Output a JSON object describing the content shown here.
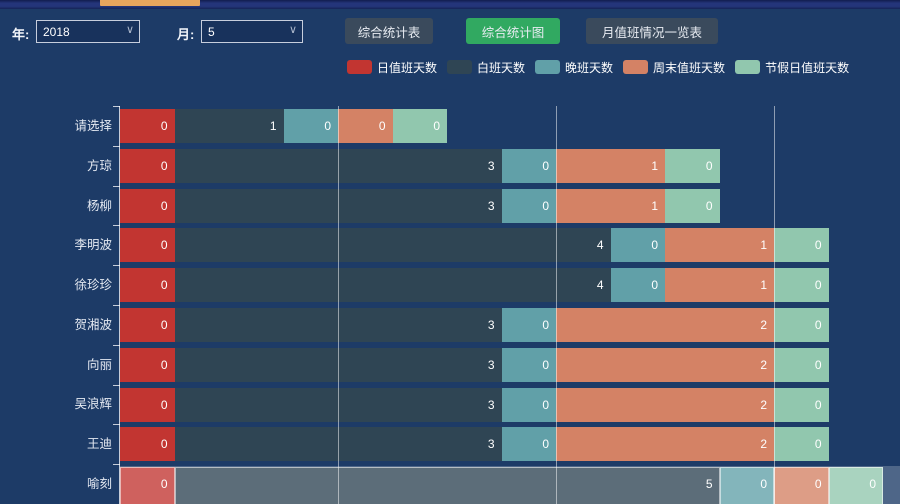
{
  "toolbar": {
    "year_label": "年:",
    "year_value": "2018",
    "month_label": "月:",
    "month_value": "5",
    "buttons": {
      "stats_table": "综合统计表",
      "stats_chart": "综合统计图",
      "monthly_duty_list": "月值班情况一览表"
    }
  },
  "colors": {
    "background": "#1d3b67",
    "active_tab_indicator": "#e8a55d",
    "button_slate": "#3a4a5c",
    "button_active_green": "#31a961"
  },
  "chart_data": {
    "type": "bar",
    "orientation": "horizontal",
    "stacked": true,
    "legend_position": "top",
    "categories": [
      "请选择",
      "方琼",
      "杨柳",
      "李明波",
      "徐珍珍",
      "贺湘波",
      "向丽",
      "吴浪辉",
      "王迪",
      "喻刻"
    ],
    "series": [
      {
        "name": "日值班天数",
        "color": "#c23531",
        "values": [
          0,
          0,
          0,
          0,
          0,
          0,
          0,
          0,
          0,
          0
        ]
      },
      {
        "name": "白班天数",
        "color": "#2f4554",
        "values": [
          1,
          3,
          3,
          4,
          4,
          3,
          3,
          3,
          3,
          5
        ]
      },
      {
        "name": "晚班天数",
        "color": "#61a0a8",
        "values": [
          0,
          0,
          0,
          0,
          0,
          0,
          0,
          0,
          0,
          0
        ]
      },
      {
        "name": "周末值班天数",
        "color": "#d48265",
        "values": [
          0,
          1,
          1,
          1,
          1,
          2,
          2,
          2,
          2,
          0
        ]
      },
      {
        "name": "节假日值班天数",
        "color": "#91c7ae",
        "values": [
          0,
          0,
          0,
          0,
          0,
          0,
          0,
          0,
          0,
          0
        ]
      }
    ],
    "gridline_values": [
      2,
      4,
      6
    ],
    "xlim": [
      0,
      7.2
    ],
    "zero_segment_units": 0.5,
    "highlighted_category": "喻刻",
    "grid": true
  }
}
